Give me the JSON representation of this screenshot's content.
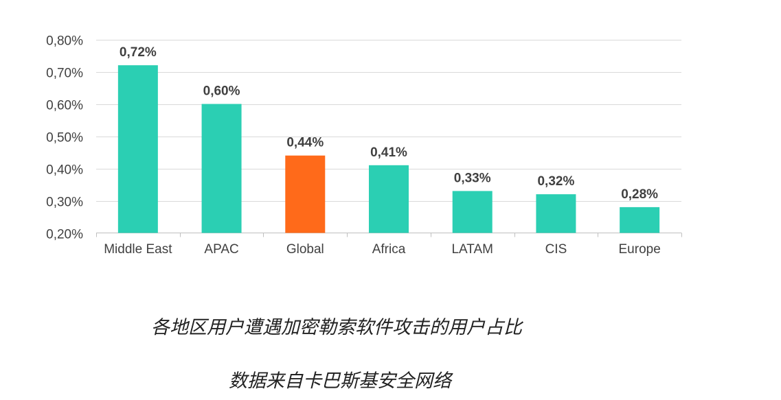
{
  "chart_data": {
    "type": "bar",
    "categories": [
      "Middle East",
      "APAC",
      "Global",
      "Africa",
      "LATAM",
      "CIS",
      "Europe"
    ],
    "values": [
      0.72,
      0.6,
      0.44,
      0.41,
      0.33,
      0.32,
      0.28
    ],
    "value_labels": [
      "0,72%",
      "0,60%",
      "0,44%",
      "0,41%",
      "0,33%",
      "0,32%",
      "0,28%"
    ],
    "ylim": [
      0.2,
      0.8
    ],
    "yticks": [
      0.2,
      0.3,
      0.4,
      0.5,
      0.6,
      0.7,
      0.8
    ],
    "ytick_labels": [
      "0,20%",
      "0,30%",
      "0,40%",
      "0,50%",
      "0,60%",
      "0,70%",
      "0,80%"
    ],
    "title": "",
    "xlabel": "",
    "ylabel": "",
    "grid": true,
    "colors": {
      "bar": "#2bcfb3",
      "highlight": "#ff6a1a",
      "grid": "#d9d9d9",
      "axis": "#bfbfbf",
      "text": "#404040"
    },
    "highlight_category": "Global"
  },
  "caption": {
    "title": "各地区用户遭遇加密勒索软件攻击的用户占比",
    "source": "数据来自卡巴斯基安全网络"
  }
}
